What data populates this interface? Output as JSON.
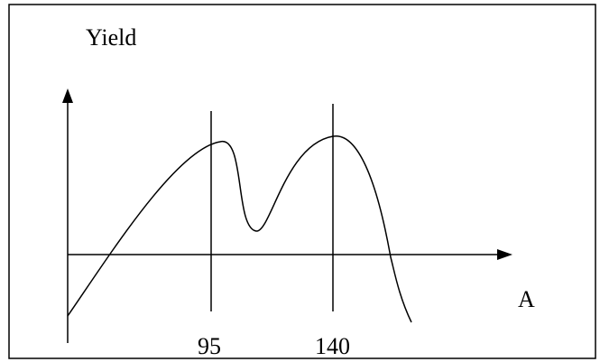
{
  "figure": {
    "y_axis_label": "Yield",
    "x_axis_label": "A",
    "marker_labels": [
      "95",
      "140"
    ]
  },
  "chart_data": {
    "type": "line",
    "title": "",
    "xlabel": "A",
    "ylabel": "Yield",
    "markers": [
      95,
      140
    ],
    "series": [
      {
        "x": [
          0,
          95,
          140
        ],
        "y": [
          -1,
          1.8,
          1.9
        ]
      }
    ],
    "curve_shape": "yield curve starting below the A axis, crossing it, peaking near A=95, dipping to a trough, peaking again near A=140, then falling below the A axis",
    "colors": {
      "line": "#000000",
      "border": "#000000"
    }
  }
}
